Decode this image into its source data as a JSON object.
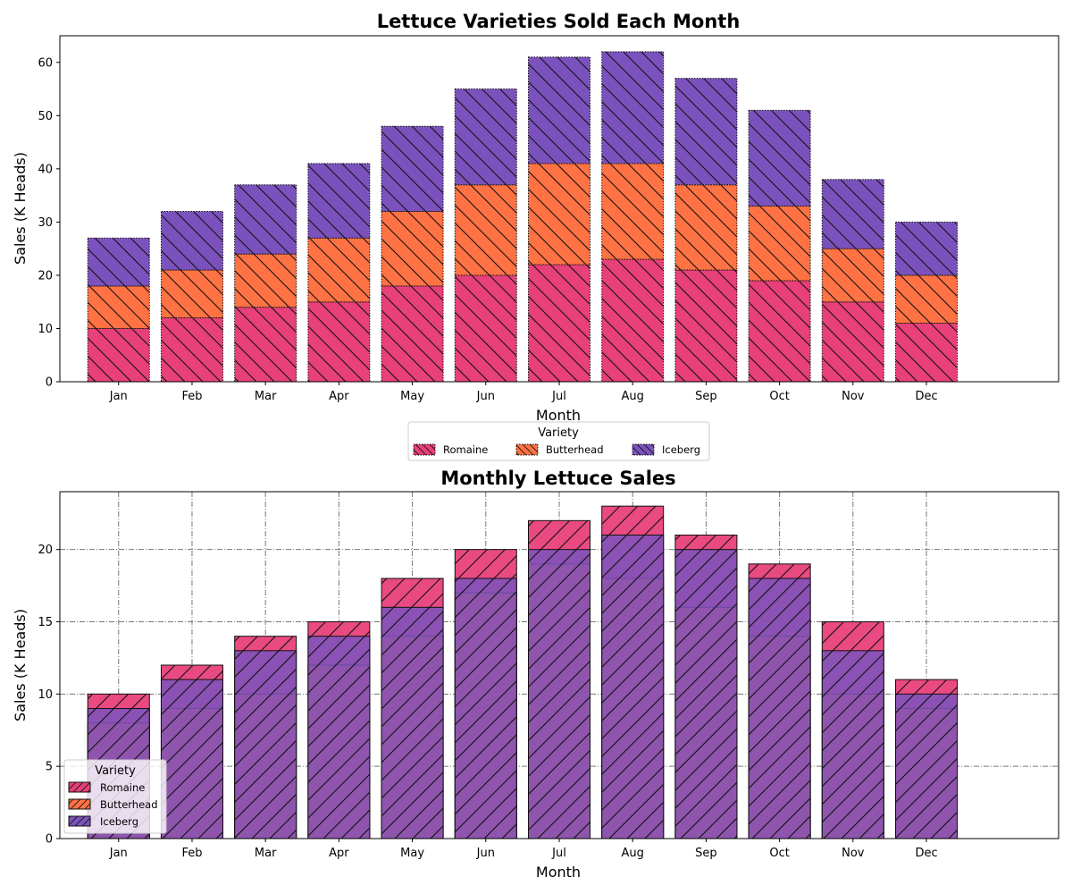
{
  "chart_data": [
    {
      "type": "bar",
      "stacked": true,
      "title": "Lettuce Varieties Sold Each Month",
      "xlabel": "Month",
      "ylabel": "Sales (K Heads)",
      "categories": [
        "Jan",
        "Feb",
        "Mar",
        "Apr",
        "May",
        "Jun",
        "Jul",
        "Aug",
        "Sep",
        "Oct",
        "Nov",
        "Dec"
      ],
      "ylim": [
        0,
        65
      ],
      "yticks": [
        0,
        10,
        20,
        30,
        40,
        50,
        60
      ],
      "grid": false,
      "series": [
        {
          "name": "Romaine",
          "color": "#e8407a",
          "values": [
            10,
            12,
            14,
            15,
            18,
            20,
            22,
            23,
            21,
            19,
            15,
            11
          ]
        },
        {
          "name": "Butterhead",
          "color": "#ff7243",
          "values": [
            8,
            9,
            10,
            12,
            14,
            17,
            19,
            18,
            16,
            14,
            10,
            9
          ]
        },
        {
          "name": "Iceberg",
          "color": "#7b52bd",
          "values": [
            9,
            11,
            13,
            14,
            16,
            18,
            20,
            21,
            20,
            18,
            13,
            10
          ]
        }
      ],
      "legend": {
        "title": "Variety",
        "placement": "below-center",
        "entries": [
          "Romaine",
          "Butterhead",
          "Iceberg"
        ]
      }
    },
    {
      "type": "bar",
      "stacked": false,
      "overlapping": true,
      "title": "Monthly Lettuce Sales",
      "xlabel": "Month",
      "ylabel": "Sales (K Heads)",
      "categories": [
        "Jan",
        "Feb",
        "Mar",
        "Apr",
        "May",
        "Jun",
        "Jul",
        "Aug",
        "Sep",
        "Oct",
        "Nov",
        "Dec"
      ],
      "ylim": [
        0,
        24
      ],
      "yticks": [
        0,
        5,
        10,
        15,
        20
      ],
      "grid": true,
      "series": [
        {
          "name": "Romaine",
          "color": "#e8407a",
          "values": [
            10,
            12,
            14,
            15,
            18,
            20,
            22,
            23,
            21,
            19,
            15,
            11
          ]
        },
        {
          "name": "Butterhead",
          "color": "#ff7243",
          "values": [
            8,
            9,
            10,
            12,
            14,
            17,
            19,
            18,
            16,
            14,
            10,
            9
          ]
        },
        {
          "name": "Iceberg",
          "color": "#7b52bd",
          "values": [
            9,
            11,
            13,
            14,
            16,
            18,
            20,
            21,
            20,
            18,
            13,
            10
          ]
        }
      ],
      "legend": {
        "title": "Variety",
        "placement": "lower-left",
        "entries": [
          "Romaine",
          "Butterhead",
          "Iceberg"
        ]
      }
    }
  ]
}
